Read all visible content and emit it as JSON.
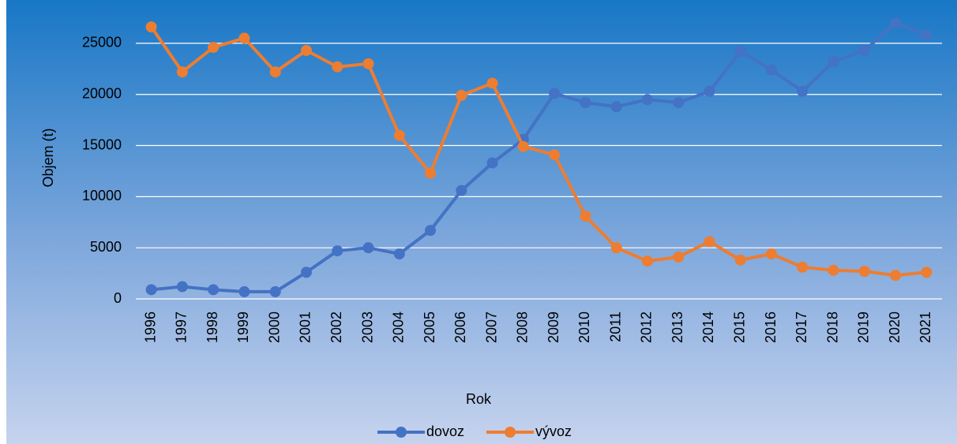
{
  "chart_data": {
    "type": "line",
    "x_label": "Rok",
    "y_label": "Objem (t)",
    "categories": [
      "1996",
      "1997",
      "1998",
      "1999",
      "2000",
      "2001",
      "2002",
      "2003",
      "2004",
      "2005",
      "2006",
      "2007",
      "2008",
      "2009",
      "2010",
      "2011",
      "2012",
      "2013",
      "2014",
      "2015",
      "2016",
      "2017",
      "2018",
      "2019",
      "2020",
      "2021"
    ],
    "series": [
      {
        "name": "dovoz",
        "color": "#4472c4",
        "values": [
          900,
          1200,
          900,
          700,
          700,
          2600,
          4700,
          5000,
          4400,
          6700,
          10600,
          13300,
          15600,
          20100,
          19200,
          18800,
          19500,
          19200,
          20300,
          24200,
          22400,
          20300,
          23200,
          24300,
          27000,
          25800
        ]
      },
      {
        "name": "vývoz",
        "color": "#ed7d31",
        "values": [
          26600,
          22200,
          24600,
          25500,
          22200,
          24300,
          22700,
          23000,
          16000,
          12300,
          19900,
          21100,
          14900,
          14100,
          8100,
          5000,
          3700,
          4100,
          5600,
          3800,
          4400,
          3100,
          2800,
          2700,
          2300,
          2600
        ]
      }
    ],
    "ylim": [
      0,
      28000
    ],
    "yticks": [
      0,
      5000,
      10000,
      15000,
      20000,
      25000
    ],
    "grid": true,
    "legend": "bottom"
  }
}
